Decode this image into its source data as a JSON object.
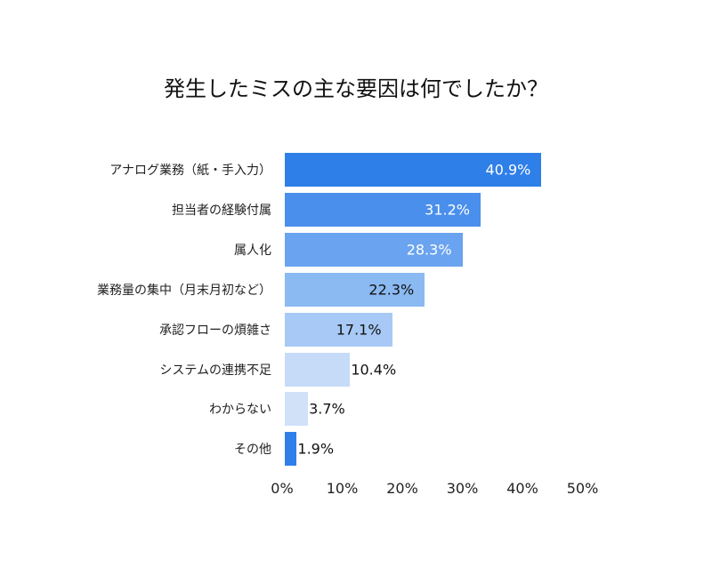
{
  "chart_data": {
    "type": "bar",
    "orientation": "horizontal",
    "title": "発生したミスの主な要因は何でしたか？",
    "categories": [
      "アナログ業務（紙・手入力）",
      "担当者の経験付属",
      "属人化",
      "業務量の集中（月末月初など）",
      "承認フローの煩雑さ",
      "システムの連携不足",
      "わからない",
      "その他"
    ],
    "values": [
      40.9,
      31.2,
      28.3,
      22.3,
      17.1,
      10.4,
      3.7,
      1.9
    ],
    "value_labels": [
      "40.9%",
      "31.2%",
      "28.3%",
      "22.3%",
      "17.1%",
      "10.4%",
      "3.7%",
      "1.9%"
    ],
    "colors": [
      "#2f7fe8",
      "#4a8fec",
      "#6aa3ef",
      "#8bb9f2",
      "#a8c9f5",
      "#c5dbf8",
      "#d0e1f8",
      "#2f7fe8"
    ],
    "xlim": [
      0,
      50
    ],
    "xticks": [
      "0%",
      "10%",
      "20%",
      "30%",
      "40%",
      "50%"
    ],
    "grid": false,
    "legend": "none"
  }
}
